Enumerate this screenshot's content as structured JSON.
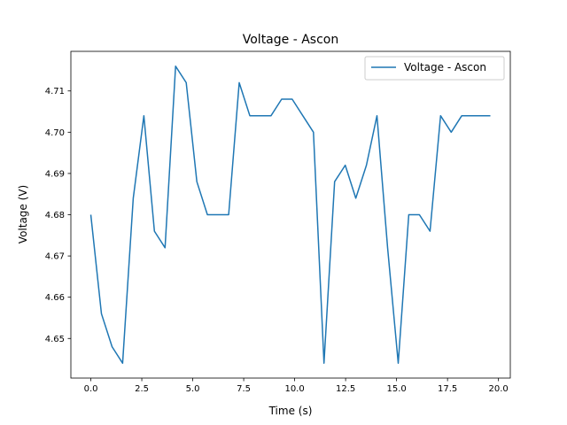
{
  "chart_data": {
    "type": "line",
    "title": "Voltage - Ascon",
    "xlabel": "Time (s)",
    "ylabel": "Voltage (V)",
    "xlim": [
      -0.98,
      20.58
    ],
    "ylim": [
      4.6404,
      4.7196
    ],
    "xticks": [
      0.0,
      2.5,
      5.0,
      7.5,
      10.0,
      12.5,
      15.0,
      17.5,
      20.0
    ],
    "xtick_labels": [
      "0.0",
      "2.5",
      "5.0",
      "7.5",
      "10.0",
      "12.5",
      "15.0",
      "17.5",
      "20.0"
    ],
    "yticks": [
      4.65,
      4.66,
      4.67,
      4.68,
      4.69,
      4.7,
      4.71
    ],
    "ytick_labels": [
      "4.65",
      "4.66",
      "4.67",
      "4.68",
      "4.69",
      "4.70",
      "4.71"
    ],
    "grid": false,
    "legend_position": "top-right",
    "series": [
      {
        "name": "Voltage - Ascon",
        "color": "#1f77b4",
        "x": [
          0.0,
          0.52,
          1.04,
          1.56,
          2.08,
          2.6,
          3.12,
          3.64,
          4.16,
          4.68,
          5.2,
          5.72,
          6.24,
          6.76,
          7.28,
          7.8,
          8.32,
          8.84,
          9.36,
          9.88,
          10.4,
          10.92,
          11.44,
          11.96,
          12.48,
          13.0,
          13.52,
          14.04,
          14.56,
          15.08,
          15.6,
          16.12,
          16.64,
          17.16,
          17.68,
          18.2,
          18.72,
          19.24,
          19.6
        ],
        "y": [
          4.68,
          4.656,
          4.648,
          4.644,
          4.684,
          4.704,
          4.676,
          4.672,
          4.716,
          4.712,
          4.688,
          4.68,
          4.68,
          4.68,
          4.712,
          4.704,
          4.704,
          4.704,
          4.708,
          4.708,
          4.704,
          4.7,
          4.644,
          4.688,
          4.692,
          4.684,
          4.692,
          4.704,
          4.672,
          4.644,
          4.68,
          4.68,
          4.676,
          4.704,
          4.7,
          4.704,
          4.704,
          4.704,
          4.704
        ]
      }
    ]
  }
}
